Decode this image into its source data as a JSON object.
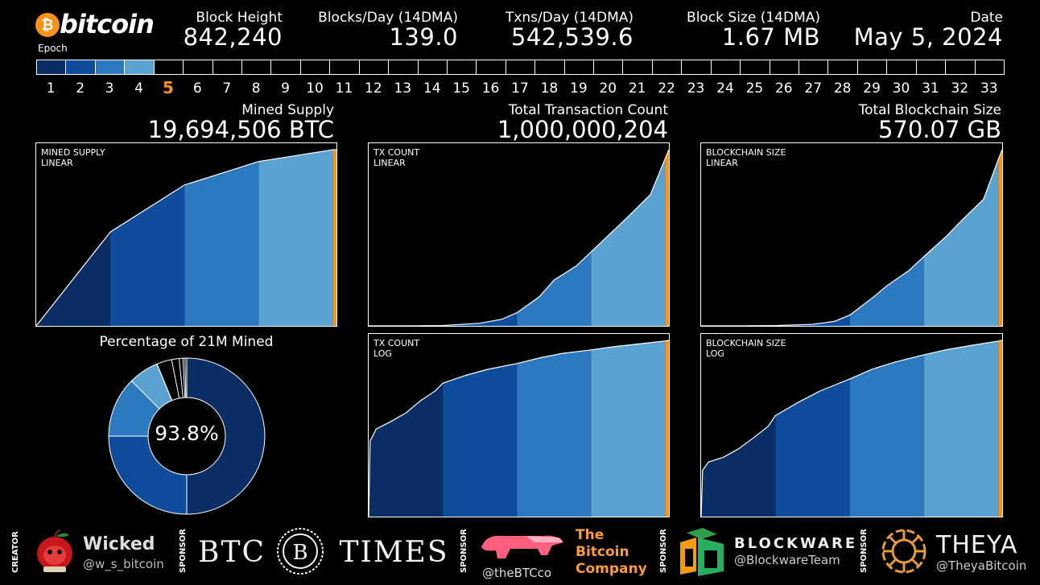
{
  "brand": {
    "name": "bitcoin",
    "symbol": "₿"
  },
  "epoch_label": "Epoch",
  "stats": [
    {
      "label": "Block Height",
      "value": "842,240"
    },
    {
      "label": "Blocks/Day (14DMA)",
      "value": "139.0"
    },
    {
      "label": "Txns/Day (14DMA)",
      "value": "542,539.6"
    },
    {
      "label": "Block Size (14DMA)",
      "value": "1.67 MB"
    },
    {
      "label": "Date",
      "value": "May 5, 2024"
    }
  ],
  "epochs": {
    "current": 5,
    "numbers": [
      "1",
      "2",
      "3",
      "4",
      "5",
      "6",
      "7",
      "8",
      "9",
      "10",
      "11",
      "12",
      "13",
      "14",
      "15",
      "16",
      "17",
      "18",
      "19",
      "20",
      "21",
      "22",
      "23",
      "24",
      "25",
      "26",
      "27",
      "28",
      "29",
      "30",
      "31",
      "32",
      "33"
    ],
    "colors": [
      "#0b2d66",
      "#0f4d9c",
      "#2d79bf",
      "#5aa2d2"
    ],
    "current_color": "#f7931a"
  },
  "panels": {
    "supply": {
      "title": "Mined Supply",
      "value": "19,694,506 BTC"
    },
    "txcount": {
      "title": "Total Transaction Count",
      "value": "1,000,000,204"
    },
    "chainsize": {
      "title": "Total Blockchain Size",
      "value": "570.07 GB"
    }
  },
  "chart_data": [
    {
      "type": "area",
      "id": "mined-supply-linear",
      "tag": "MINED SUPPLY\nLINEAR",
      "scale": "linear",
      "epoch_bounds": [
        0,
        1,
        2,
        3,
        4,
        4.05
      ],
      "x": [
        0,
        1,
        2,
        3,
        4,
        4.05
      ],
      "y": [
        0,
        10500000,
        15750000,
        18375000,
        19687500,
        19694506
      ]
    },
    {
      "type": "area",
      "id": "tx-count-linear",
      "tag": "TX COUNT\nLINEAR",
      "scale": "linear",
      "epoch_bounds": [
        0,
        1,
        2,
        3,
        4,
        4.05
      ],
      "x": [
        0,
        0.5,
        1,
        1.5,
        1.8,
        2,
        2.3,
        2.5,
        2.8,
        3,
        3.3,
        3.5,
        3.8,
        4,
        4.05
      ],
      "y": [
        0,
        100000,
        2000000,
        15000000,
        38000000,
        75000000,
        165000000,
        260000000,
        340000000,
        420000000,
        540000000,
        620000000,
        745000000,
        950000000,
        1000000204
      ]
    },
    {
      "type": "area",
      "id": "chain-size-linear",
      "tag": "BLOCKCHAIN SIZE\nLINEAR",
      "scale": "linear",
      "epoch_bounds": [
        0,
        1,
        2,
        3,
        4,
        4.05
      ],
      "x": [
        0,
        0.5,
        1,
        1.5,
        1.8,
        2,
        2.3,
        2.5,
        2.8,
        3,
        3.3,
        3.5,
        3.8,
        4,
        4.05
      ],
      "y": [
        0,
        0.1,
        1,
        5,
        15,
        35,
        90,
        130,
        180,
        225,
        290,
        340,
        410,
        540,
        570.07
      ]
    },
    {
      "type": "area",
      "id": "tx-count-log",
      "tag": "TX COUNT\nLOG",
      "scale": "log",
      "epoch_bounds": [
        0,
        1,
        2,
        3,
        4,
        4.05
      ],
      "x": [
        0,
        0.02,
        0.1,
        0.3,
        0.5,
        0.7,
        0.9,
        1,
        1.3,
        1.6,
        2,
        2.3,
        2.6,
        3,
        3.3,
        3.6,
        4,
        4.05
      ],
      "y": [
        100,
        100000,
        300000,
        600000,
        1300000,
        4000000,
        10000000,
        20000000,
        40000000,
        70000000,
        120000000,
        200000000,
        300000000,
        420000000,
        560000000,
        700000000,
        950000000,
        1000000204
      ]
    },
    {
      "type": "area",
      "id": "chain-size-log",
      "tag": "BLOCKCHAIN SIZE\nLOG",
      "scale": "log",
      "epoch_bounds": [
        0,
        1,
        2,
        3,
        4,
        4.05
      ],
      "x": [
        0,
        0.02,
        0.1,
        0.3,
        0.5,
        0.7,
        0.9,
        1,
        1.3,
        1.6,
        2,
        2.3,
        2.6,
        3,
        3.3,
        3.6,
        4,
        4.05
      ],
      "y": [
        0.0002,
        0.01,
        0.02,
        0.03,
        0.06,
        0.15,
        0.4,
        1,
        3,
        8,
        22,
        50,
        90,
        170,
        260,
        360,
        540,
        570.07
      ]
    },
    {
      "type": "pie",
      "id": "percent-mined-donut",
      "title": "Percentage of 21M Mined",
      "center_label": "93.8%",
      "slices": [
        {
          "epoch": 1,
          "value": 50.0,
          "color": "#0b2d66"
        },
        {
          "epoch": 2,
          "value": 25.0,
          "color": "#0f4d9c"
        },
        {
          "epoch": 3,
          "value": 12.5,
          "color": "#2d79bf"
        },
        {
          "epoch": 4,
          "value": 6.25,
          "color": "#5aa2d2"
        },
        {
          "epoch": 5,
          "value": 0.03,
          "color": "#f7931a"
        },
        {
          "epoch": "remaining",
          "value": 6.22,
          "color": "#000000"
        }
      ]
    }
  ],
  "footer": [
    {
      "tag": "CREATOR",
      "name": "Wicked",
      "handle": "@w_s_bitcoin"
    },
    {
      "tag": "SPONSOR",
      "name": "BTC TIMES",
      "handle": ""
    },
    {
      "tag": "SPONSOR",
      "name": "The Bitcoin Company",
      "handle": "@theBTCco"
    },
    {
      "tag": "SPONSOR",
      "name": "BLOCKWARE",
      "handle": "@BlockwareTeam"
    },
    {
      "tag": "SPONSOR",
      "name": "THEYA",
      "handle": "@TheyaBitcoin"
    }
  ]
}
